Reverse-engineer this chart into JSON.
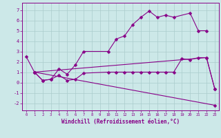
{
  "background_color": "#cce8e8",
  "grid_color": "#aacccc",
  "line_color": "#880088",
  "xlabel": "Windchill (Refroidissement éolien,°C)",
  "xlim": [
    -0.5,
    23.5
  ],
  "ylim": [
    -2.7,
    7.7
  ],
  "xticks": [
    0,
    1,
    2,
    3,
    4,
    5,
    6,
    7,
    8,
    9,
    10,
    11,
    12,
    13,
    14,
    15,
    16,
    17,
    18,
    19,
    20,
    21,
    22,
    23
  ],
  "yticks": [
    -2,
    -1,
    0,
    1,
    2,
    3,
    4,
    5,
    6,
    7
  ],
  "line1_x": [
    0,
    1,
    2,
    3,
    4,
    5,
    6,
    7,
    10,
    11,
    12,
    13,
    14,
    15,
    16,
    17,
    18,
    20,
    21,
    22
  ],
  "line1_y": [
    2.5,
    1.0,
    0.2,
    0.3,
    1.3,
    0.8,
    1.7,
    3.0,
    3.0,
    4.2,
    4.5,
    5.6,
    6.3,
    6.9,
    6.3,
    6.5,
    6.3,
    6.7,
    5.0,
    5.0
  ],
  "line2_x": [
    1,
    2,
    3,
    4,
    5,
    6,
    7,
    10,
    11,
    12,
    13,
    14,
    15,
    16,
    17,
    18,
    19,
    20,
    21,
    22,
    23
  ],
  "line2_y": [
    1.0,
    0.2,
    0.3,
    0.7,
    0.2,
    0.3,
    0.9,
    1.0,
    1.0,
    1.0,
    1.0,
    1.0,
    1.0,
    1.0,
    1.0,
    1.0,
    2.3,
    2.2,
    2.4,
    2.4,
    -0.6
  ],
  "line3_x": [
    1,
    22,
    23
  ],
  "line3_y": [
    1.0,
    2.4,
    -0.6
  ],
  "line4_x": [
    1,
    23
  ],
  "line4_y": [
    1.0,
    -2.2
  ],
  "markersize": 2.5
}
